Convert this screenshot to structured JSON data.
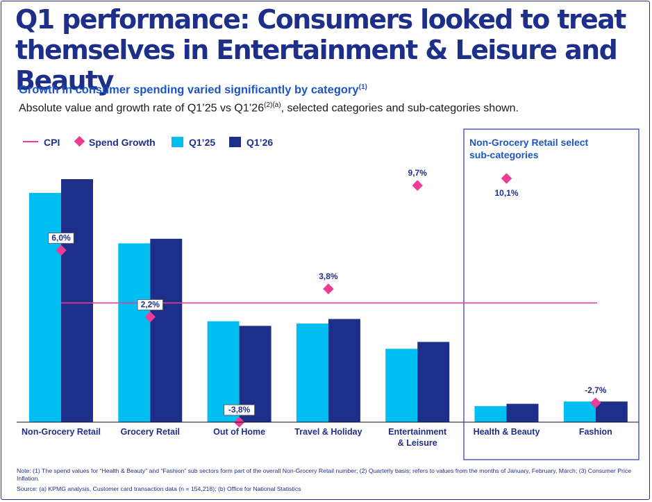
{
  "title": {
    "line1": "Q1 performance: Consumers looked to treat",
    "line2": "themselves in Entertainment & Leisure and Beauty"
  },
  "subtitle": {
    "text": "Growth in consumer spending varied significantly by category",
    "ref": "(1)"
  },
  "description": {
    "before": "Absolute value and growth rate of Q1’25 vs Q1’26",
    "ref": "(2)(a)",
    "after": ", selected categories and sub-categories shown."
  },
  "legend": {
    "cpi": "CPI",
    "spend_growth": "Spend Growth",
    "q1_25": "Q1’25",
    "q1_26": "Q1’26"
  },
  "highlight_box": {
    "label_line1": "Non-Grocery Retail select",
    "label_line2": "sub-categories"
  },
  "colors": {
    "q1_25": "#00bdf2",
    "q1_26": "#1e2f8a",
    "spend_growth": "#ec3d96",
    "cpi": "#ec3d96",
    "box_border": "#4a5fd0",
    "box_label": "#1d55c4"
  },
  "chart_data": {
    "type": "bar",
    "categories": [
      [
        "Non-Grocery Retail"
      ],
      [
        "Grocery Retail"
      ],
      [
        "Out of Home"
      ],
      [
        "Travel & Holiday"
      ],
      [
        "Entertainment",
        "& Leisure"
      ],
      [
        "Health & Beauty"
      ],
      [
        "Fashion"
      ]
    ],
    "series": [
      {
        "name": "Q1’25",
        "values": [
          100,
          78,
          44,
          43,
          32,
          7,
          9
        ]
      },
      {
        "name": "Q1’26",
        "values": [
          106,
          80,
          42,
          45,
          35,
          8,
          9
        ]
      }
    ],
    "spend_growth": {
      "name": "Spend Growth",
      "values": [
        6.0,
        2.2,
        -3.8,
        3.8,
        9.7,
        10.1,
        -2.7
      ],
      "labels": [
        "6,0%",
        "2,2%",
        "-3,8%",
        "3,8%",
        "9,7%",
        "10,1%",
        "-2,7%"
      ],
      "boxed_labels": [
        true,
        true,
        true,
        false,
        false,
        false,
        false
      ],
      "label_below": [
        false,
        false,
        false,
        false,
        false,
        true,
        false
      ]
    },
    "cpi": {
      "name": "CPI",
      "value": 3.0
    },
    "growth_range": [
      -3.8,
      10.1
    ],
    "ylim": [
      0,
      106
    ],
    "highlighted_categories": [
      "Health & Beauty",
      "Fashion"
    ]
  },
  "notes": {
    "note": "Note: (1) The spend values for “Health & Beauty” and “Fashion” sub sectors form part of the overall Non-Grocery Retail number; (2) Quarterly basis: refers to values from the months of January, February, March; (3) Consumer Price Inflation.",
    "source": "Source: (a) KPMG analysis, Customer card transaction data (n = 154,218); (b) Office for National Statistics"
  }
}
